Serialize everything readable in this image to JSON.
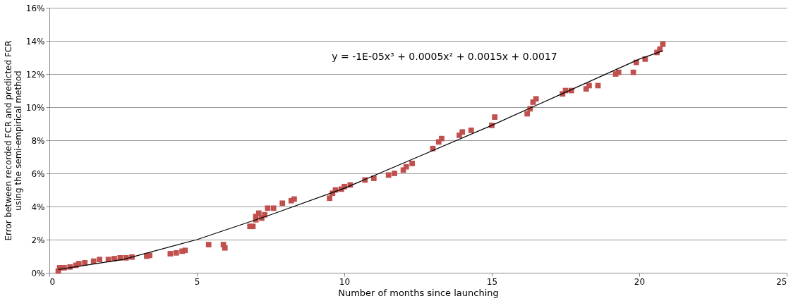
{
  "chart_data": {
    "type": "scatter",
    "xlabel": "Number of months since launching",
    "ylabel": "Error between recorded FCR and predicted FCR using the semi-empirical method",
    "xlim": [
      0,
      25
    ],
    "xticks": [
      0,
      5,
      10,
      15,
      20,
      25
    ],
    "ylim": [
      0,
      16
    ],
    "yticks": [
      {
        "value": 0,
        "label": "0%"
      },
      {
        "value": 2,
        "label": "2%"
      },
      {
        "value": 4,
        "label": "4%"
      },
      {
        "value": 6,
        "label": "6%"
      },
      {
        "value": 8,
        "label": "8%"
      },
      {
        "value": 10,
        "label": "10%"
      },
      {
        "value": 12,
        "label": "12%"
      },
      {
        "value": 14,
        "label": "14%"
      },
      {
        "value": 16,
        "label": "16%"
      }
    ],
    "grid": "y",
    "legend": false,
    "annotations": [
      "y = -1E-05x³ + 0.0005x² + 0.0015x + 0.0017"
    ],
    "series": [
      {
        "marker": "square",
        "color": "#c0504d",
        "x": [
          0.3,
          0.35,
          0.5,
          0.7,
          0.9,
          1.0,
          1.2,
          1.5,
          1.7,
          2.0,
          2.2,
          2.4,
          2.6,
          2.8,
          3.3,
          3.4,
          4.1,
          4.3,
          4.5,
          4.6,
          5.4,
          5.9,
          5.95,
          6.8,
          6.9,
          7.0,
          7.0,
          7.1,
          7.2,
          7.3,
          7.4,
          7.6,
          7.9,
          8.2,
          8.3,
          9.5,
          9.6,
          9.7,
          9.9,
          10.0,
          10.2,
          10.7,
          11.0,
          11.5,
          11.7,
          12.0,
          12.1,
          12.3,
          13.0,
          13.2,
          13.3,
          13.9,
          14.0,
          14.3,
          15.0,
          15.1,
          16.2,
          16.3,
          16.4,
          16.5,
          17.4,
          17.5,
          17.7,
          18.2,
          18.3,
          18.6,
          19.2,
          19.3,
          19.8,
          19.9,
          20.2,
          20.6,
          20.7,
          20.8
        ],
        "values": [
          0.1,
          0.3,
          0.3,
          0.35,
          0.45,
          0.55,
          0.6,
          0.7,
          0.8,
          0.8,
          0.85,
          0.9,
          0.9,
          0.95,
          1.0,
          1.05,
          1.15,
          1.2,
          1.3,
          1.35,
          1.7,
          1.7,
          1.5,
          2.8,
          2.8,
          3.2,
          3.4,
          3.6,
          3.3,
          3.5,
          3.9,
          3.9,
          4.2,
          4.35,
          4.45,
          4.5,
          4.8,
          5.0,
          5.05,
          5.2,
          5.3,
          5.6,
          5.7,
          5.9,
          6.0,
          6.2,
          6.4,
          6.6,
          7.5,
          7.9,
          8.1,
          8.3,
          8.5,
          8.6,
          8.9,
          9.4,
          9.6,
          9.9,
          10.3,
          10.5,
          10.8,
          11.0,
          11.0,
          11.1,
          11.3,
          11.3,
          12.0,
          12.1,
          12.1,
          12.7,
          12.9,
          13.3,
          13.5,
          13.8
        ]
      },
      {
        "type": "line",
        "color": "#000000",
        "x": [
          0.3,
          2.5,
          5,
          7.5,
          10,
          12.5,
          15,
          17.5,
          20,
          20.8
        ],
        "values": [
          0.2,
          0.8,
          2.0,
          3.5,
          5.1,
          7.0,
          8.9,
          10.9,
          12.9,
          13.4
        ]
      }
    ]
  }
}
